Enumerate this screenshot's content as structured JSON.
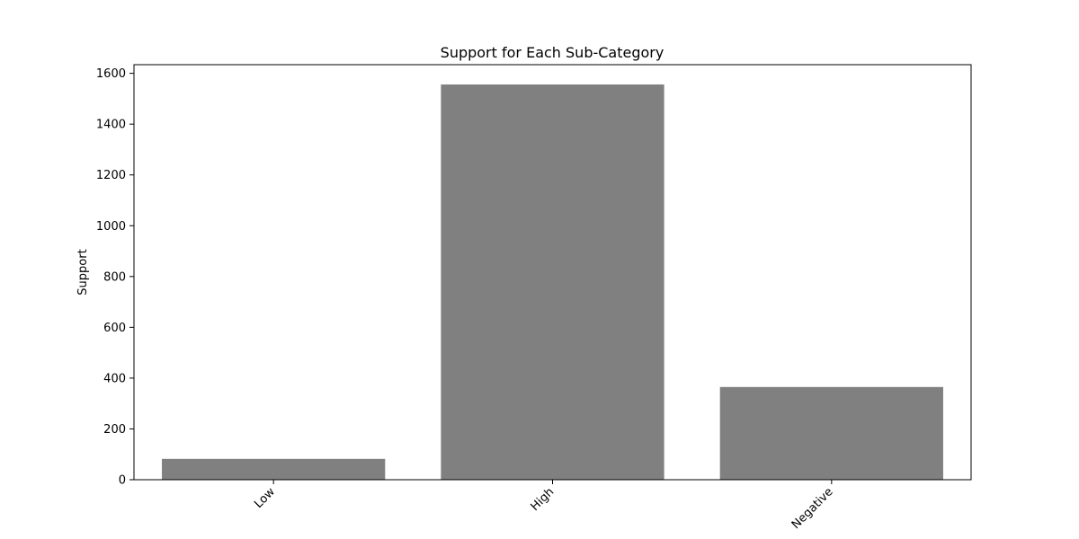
{
  "chart_data": {
    "type": "bar",
    "title": "Support for Each Sub-Category",
    "xlabel": "",
    "ylabel": "Support",
    "categories": [
      "Low",
      "High",
      "Negative"
    ],
    "values": [
      82,
      1556,
      365
    ],
    "ylim": [
      0,
      1634
    ],
    "yticks": [
      0,
      200,
      400,
      600,
      800,
      1000,
      1200,
      1400,
      1600
    ],
    "bar_color": "#808080",
    "grid": false,
    "legend": "none"
  }
}
